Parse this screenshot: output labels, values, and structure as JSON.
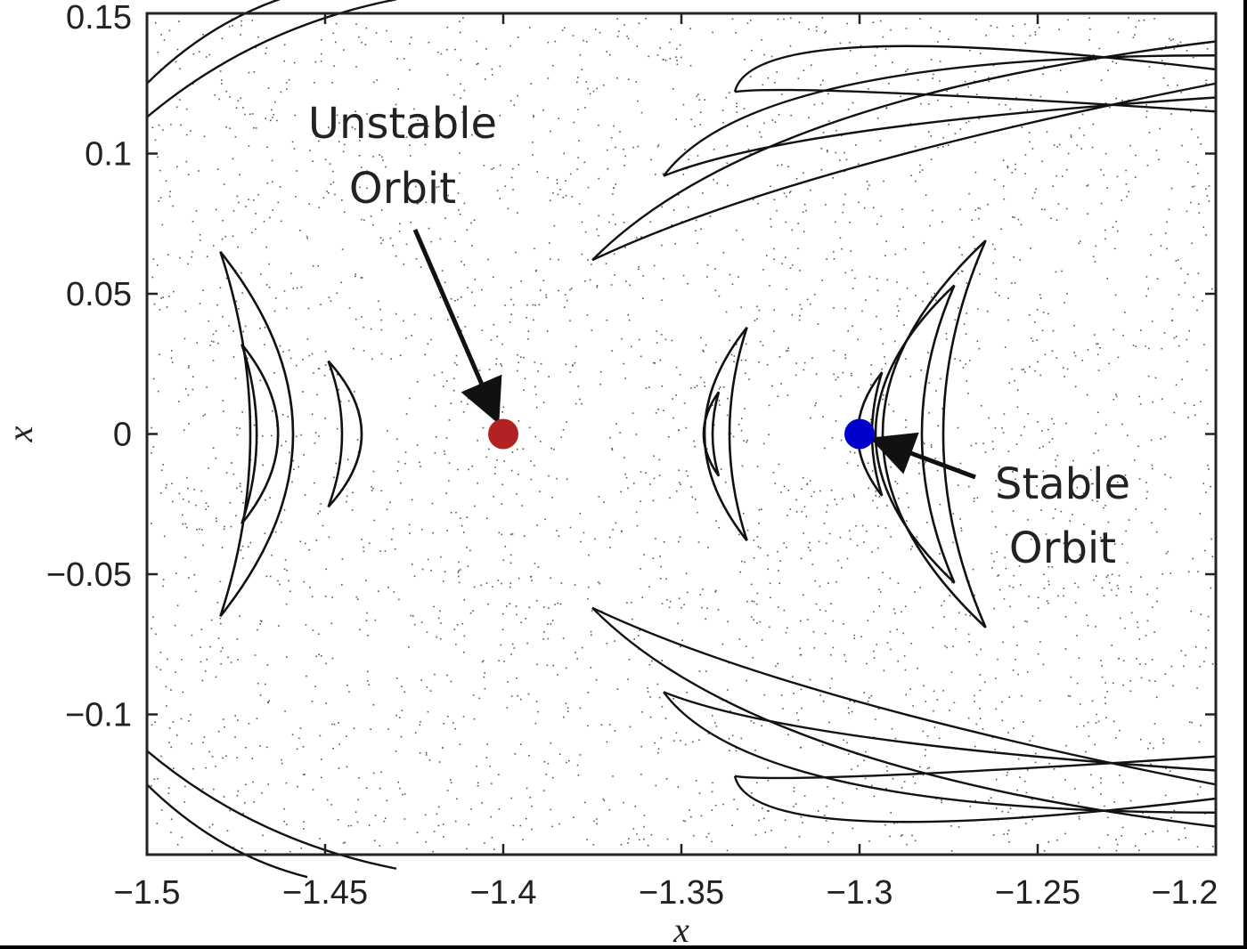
{
  "chart_data": {
    "type": "scatter",
    "title": "",
    "xlabel": "x",
    "ylabel": "x",
    "xlim": [
      -1.5,
      -1.2
    ],
    "ylim": [
      -0.15,
      0.15
    ],
    "x_ticks": [
      -1.5,
      -1.45,
      -1.4,
      -1.35,
      -1.3,
      -1.25,
      -1.2
    ],
    "x_tick_labels": [
      "−1.5",
      "−1.45",
      "−1.4",
      "−1.35",
      "−1.3",
      "−1.25",
      "−1.2"
    ],
    "y_ticks": [
      0.15,
      0.1,
      0.05,
      0,
      -0.05,
      -0.1
    ],
    "y_tick_labels": [
      "0.15",
      "0.1",
      "0.05",
      "0",
      "−0.05",
      "−0.1"
    ],
    "grid": false,
    "points": [
      {
        "name": "Unstable Orbit",
        "x": -1.4,
        "y": 0,
        "color": "#b22222"
      },
      {
        "name": "Stable Orbit",
        "x": -1.3,
        "y": 0,
        "color": "#0000cc"
      }
    ],
    "islands": [
      {
        "cx": -1.465,
        "cy": 0,
        "w": 0.024,
        "h": 0.065,
        "bend": -1
      },
      {
        "cx": -1.4662,
        "cy": 0,
        "w": 0.012,
        "h": 0.032,
        "bend": -1
      },
      {
        "cx": -1.4425,
        "cy": 0,
        "w": 0.011,
        "h": 0.026,
        "bend": -1
      },
      {
        "cx": -1.34,
        "cy": 0,
        "w": 0.014,
        "h": 0.038,
        "bend": 1
      },
      {
        "cx": -1.3425,
        "cy": 0,
        "w": 0.005,
        "h": 0.015,
        "bend": 1
      },
      {
        "cx": -1.285,
        "cy": 0,
        "w": 0.034,
        "h": 0.069,
        "bend": 1
      },
      {
        "cx": -1.289,
        "cy": 0,
        "w": 0.026,
        "h": 0.053,
        "bend": 1
      },
      {
        "cx": -1.2985,
        "cy": 0,
        "w": 0.008,
        "h": 0.022,
        "bend": 1
      }
    ],
    "annotations": [
      {
        "line1": "Unstable",
        "line2": "Orbit",
        "target": "Unstable Orbit"
      },
      {
        "line1": "Stable",
        "line2": "Orbit",
        "target": "Stable Orbit"
      }
    ]
  }
}
